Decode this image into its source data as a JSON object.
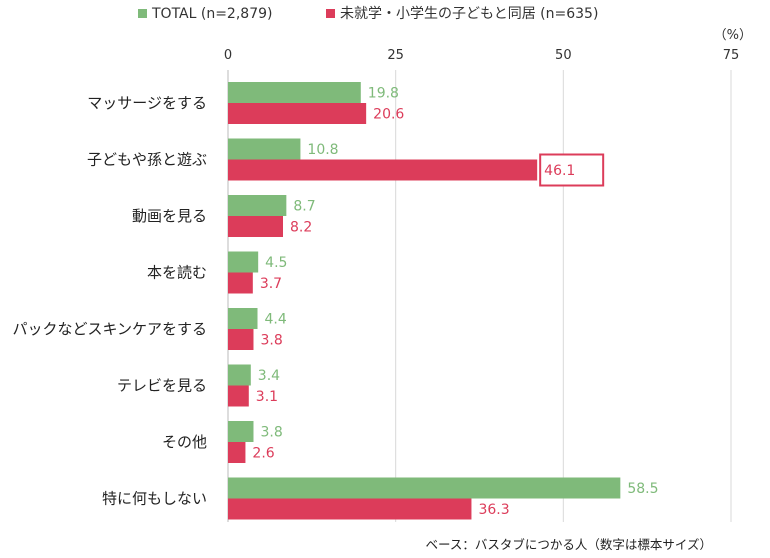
{
  "chart_data": {
    "type": "bar",
    "orientation": "horizontal",
    "unit": "（%）",
    "xlim": [
      0,
      75
    ],
    "xticks": [
      0,
      25,
      50,
      75
    ],
    "grid": true,
    "legend_position": "top",
    "categories": [
      "マッサージをする",
      "子どもや孫と遊ぶ",
      "動画を見る",
      "本を読む",
      "パックなどスキンケアをする",
      "テレビを見る",
      "その他",
      "特に何もしない"
    ],
    "series": [
      {
        "name": "TOTAL (n=2,879)",
        "color": "#7fba7a",
        "values": [
          19.8,
          10.8,
          8.7,
          4.5,
          4.4,
          3.4,
          3.8,
          58.5
        ]
      },
      {
        "name": "未就学・小学生の子どもと同居 (n=635)",
        "color": "#dc3c5a",
        "values": [
          20.6,
          46.1,
          8.2,
          3.7,
          3.8,
          3.1,
          2.6,
          36.3
        ]
      }
    ],
    "highlight": {
      "series": 1,
      "category": 1
    },
    "footnote": "ベース：バスタブにつかる人（数字は標本サイズ）"
  }
}
